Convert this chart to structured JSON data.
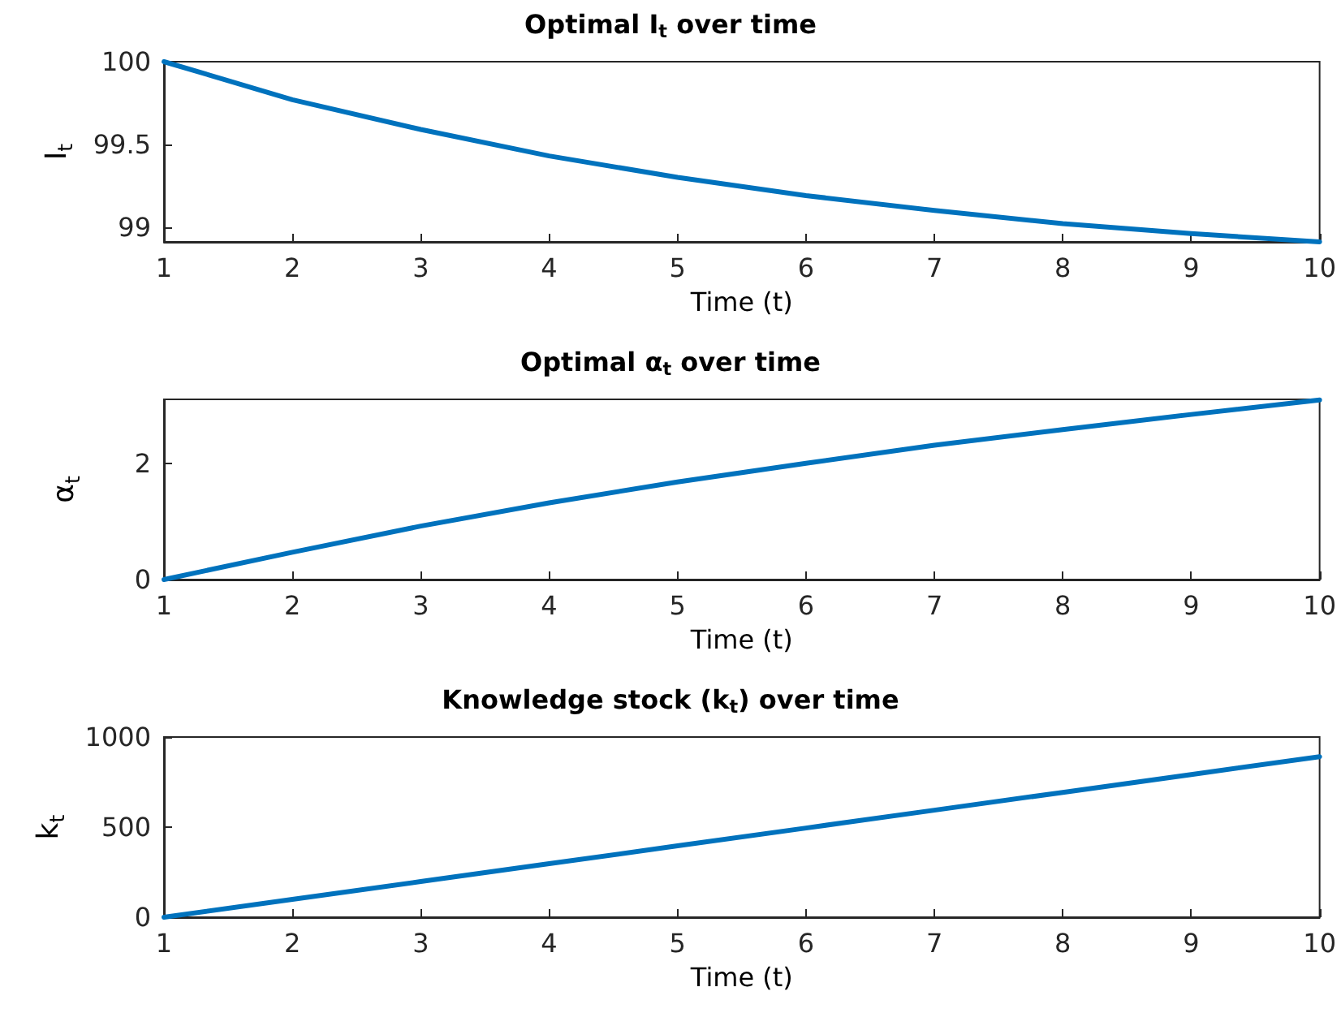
{
  "chart_data": [
    {
      "type": "line",
      "title": "Optimal I$_{t}$ over time",
      "xlabel": "Time (t)",
      "ylabel": "I$_{t}$",
      "x": [
        1,
        2,
        3,
        4,
        5,
        6,
        7,
        8,
        9,
        10
      ],
      "series": [
        {
          "color": "#0072bd",
          "values": [
            100,
            99.77,
            99.59,
            99.43,
            99.3,
            99.19,
            99.1,
            99.02,
            98.96,
            98.91
          ]
        }
      ],
      "xlim": [
        1,
        10
      ],
      "xticks": [
        1,
        2,
        3,
        4,
        5,
        6,
        7,
        8,
        9,
        10
      ],
      "ylim": [
        98.91,
        100
      ],
      "yticks": [
        99,
        99.5,
        100
      ],
      "grid": false,
      "marker": "none",
      "line_style": "solid"
    },
    {
      "type": "line",
      "title": "Optimal α$_{t}$ over time",
      "xlabel": "Time (t)",
      "ylabel": "α$_{t}$",
      "x": [
        1,
        2,
        3,
        4,
        5,
        6,
        7,
        8,
        9,
        10
      ],
      "series": [
        {
          "color": "#0072bd",
          "values": [
            0,
            0.47,
            0.92,
            1.32,
            1.68,
            2.0,
            2.31,
            2.58,
            2.84,
            3.09
          ]
        }
      ],
      "xlim": [
        1,
        10
      ],
      "xticks": [
        1,
        2,
        3,
        4,
        5,
        6,
        7,
        8,
        9,
        10
      ],
      "ylim": [
        0,
        3.1
      ],
      "yticks": [
        0,
        2
      ],
      "grid": false,
      "marker": "none",
      "line_style": "solid"
    },
    {
      "type": "line",
      "title": "Knowledge stock (k$_{t}$) over time",
      "xlabel": "Time (t)",
      "ylabel": "k$_{t}$",
      "x": [
        1,
        2,
        3,
        4,
        5,
        6,
        7,
        8,
        9,
        10
      ],
      "series": [
        {
          "color": "#0072bd",
          "values": [
            0,
            99,
            198,
            297,
            396,
            495,
            594,
            693,
            792,
            891
          ]
        }
      ],
      "xlim": [
        1,
        10
      ],
      "xticks": [
        1,
        2,
        3,
        4,
        5,
        6,
        7,
        8,
        9,
        10
      ],
      "ylim": [
        0,
        1000
      ],
      "yticks": [
        0,
        500,
        1000
      ],
      "grid": false,
      "marker": "none",
      "line_style": "solid"
    }
  ]
}
